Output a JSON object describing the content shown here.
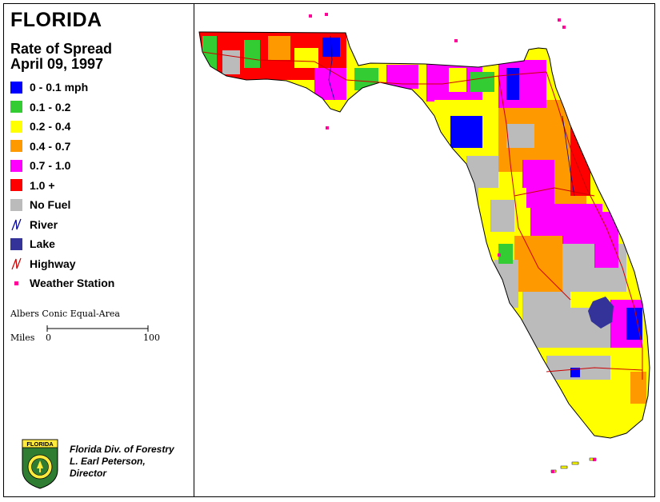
{
  "title": "FLORIDA",
  "subtitle": [
    "Rate of Spread",
    "April 09, 1997"
  ],
  "legend": [
    {
      "label": "0 - 0.1 mph",
      "color": "#0000ff",
      "kind": "swatch"
    },
    {
      "label": "0.1 - 0.2",
      "color": "#33cc33",
      "kind": "swatch"
    },
    {
      "label": "0.2 - 0.4",
      "color": "#ffff00",
      "kind": "swatch"
    },
    {
      "label": "0.4 - 0.7",
      "color": "#ff9900",
      "kind": "swatch"
    },
    {
      "label": "0.7 - 1.0",
      "color": "#ff00ff",
      "kind": "swatch"
    },
    {
      "label": "1.0 +",
      "color": "#ff0000",
      "kind": "swatch"
    },
    {
      "label": "No Fuel",
      "color": "#bbbbbb",
      "kind": "swatch"
    },
    {
      "label": "River",
      "color": "#000099",
      "kind": "line"
    },
    {
      "label": "Lake",
      "color": "#333399",
      "kind": "swatch"
    },
    {
      "label": "Highway",
      "color": "#cc0000",
      "kind": "line"
    },
    {
      "label": "Weather Station",
      "color": "#ff0099",
      "kind": "dot"
    }
  ],
  "projection": "Albers Conic Equal-Area",
  "scale": {
    "prefix": "Miles",
    "start": "0",
    "end": "100"
  },
  "seal_text": "FLORIDA",
  "credit": [
    "Florida Div. of Forestry",
    "L. Earl Peterson,",
    "Director"
  ]
}
